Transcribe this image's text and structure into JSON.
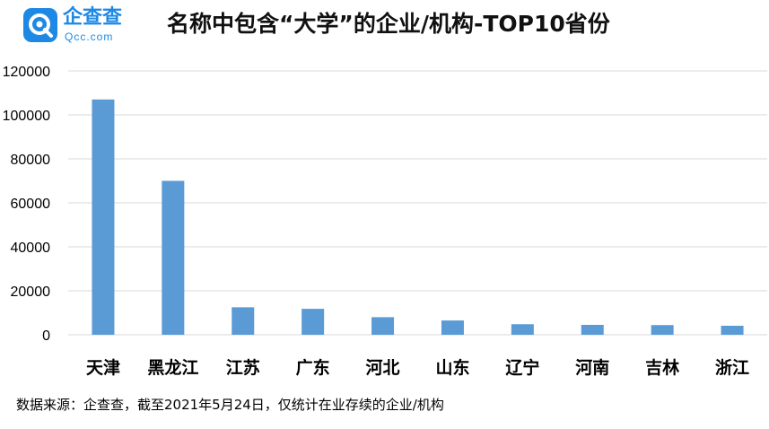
{
  "header": {
    "logo_name": "企查查",
    "logo_sub": "Qcc.com",
    "title": "名称中包含“大学”的企业/机构-TOP10省份"
  },
  "source_note": "数据来源：企查查，截至2021年5月24日，仅统计在业存续的企业/机构",
  "colors": {
    "bar": "#5b9bd5",
    "brand": "#1e88e5",
    "gridline": "#d9d9d9",
    "axis_text": "#000000"
  },
  "chart_data": {
    "type": "bar",
    "title": "名称中包含“大学”的企业/机构-TOP10省份",
    "xlabel": "",
    "ylabel": "",
    "categories": [
      "天津",
      "黑龙江",
      "江苏",
      "广东",
      "河北",
      "山东",
      "辽宁",
      "河南",
      "吉林",
      "浙江"
    ],
    "values": [
      107000,
      70000,
      12500,
      11800,
      8000,
      6500,
      4800,
      4500,
      4400,
      4100
    ],
    "ylim": [
      0,
      120000
    ],
    "yticks": [
      0,
      20000,
      40000,
      60000,
      80000,
      100000,
      120000
    ],
    "ytick_labels": [
      "0",
      "20000",
      "40000",
      "60000",
      "80000",
      "100000",
      "120000"
    ],
    "grid": true,
    "legend": "none"
  }
}
